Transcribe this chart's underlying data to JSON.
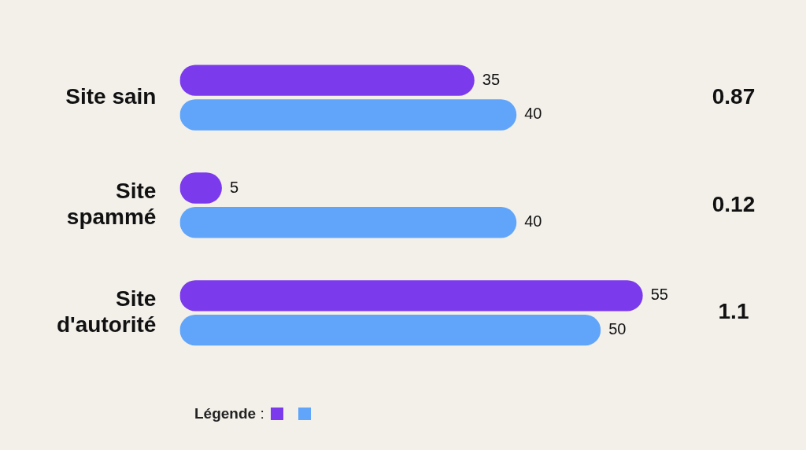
{
  "chart_data": {
    "type": "bar",
    "orientation": "horizontal",
    "categories": [
      "Site sain",
      "Site spammé",
      "Site d'autorité"
    ],
    "series": [
      {
        "color": "#7c3aed",
        "values": [
          35,
          5,
          55
        ]
      },
      {
        "color": "#60a5fa",
        "values": [
          40,
          40,
          50
        ]
      }
    ],
    "data_labels": true,
    "legend": false,
    "annotations": [
      "0.87",
      "0.12",
      "1.1",
      "Légende :"
    ]
  }
}
